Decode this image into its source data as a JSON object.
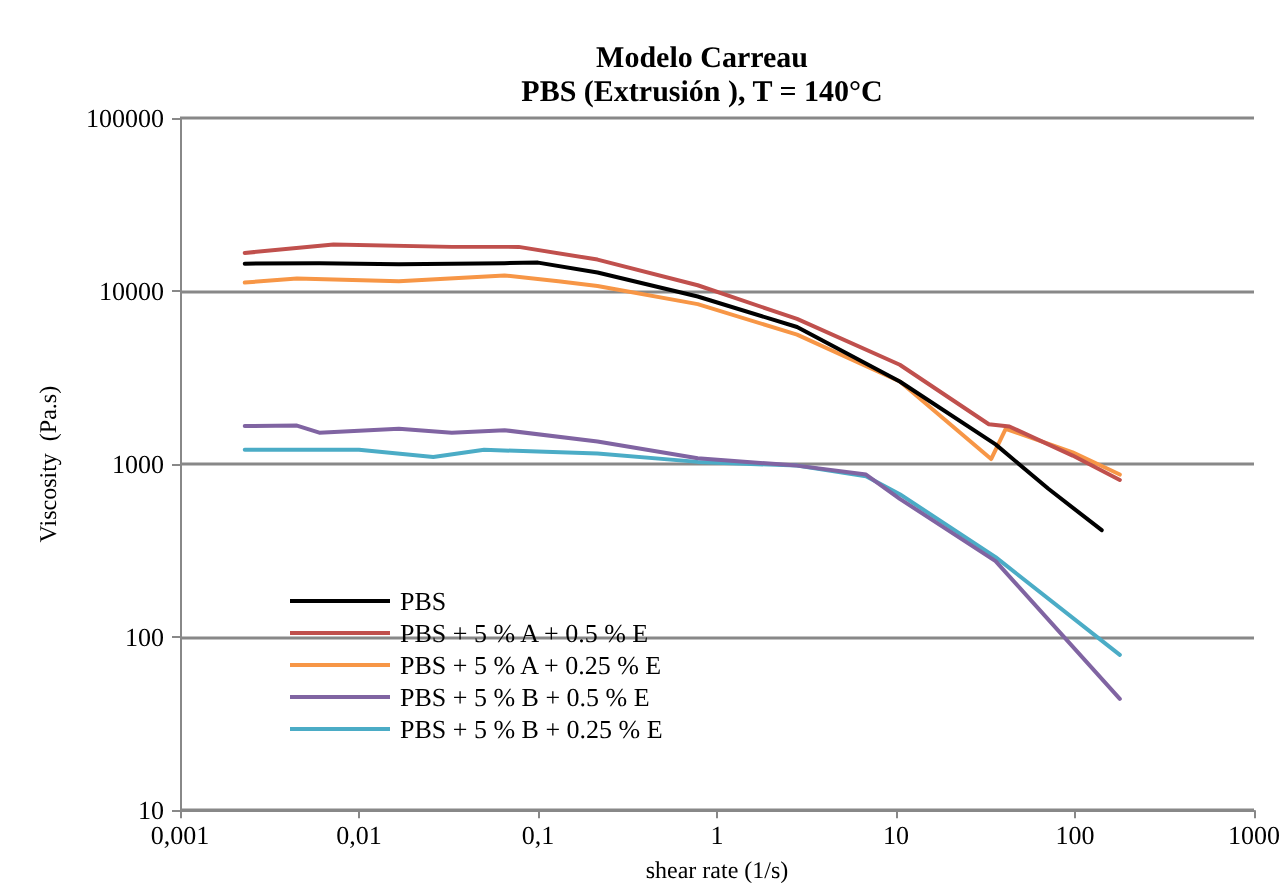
{
  "chart_data": {
    "type": "line",
    "title": "Modelo Carreau\nPBS (Extrusión ), T = 140°C",
    "xlabel": "shear rate (1/s)",
    "ylabel": "Viscosity  (Pa.s)",
    "log": "xy",
    "grid": "y",
    "legend": "bottom left",
    "marker": "none",
    "line_style": "solid",
    "xlim": [
      0.001,
      1000
    ],
    "ylim": [
      10,
      100000
    ],
    "xticks": [
      {
        "value": 0.001,
        "label": "0,001"
      },
      {
        "value": 0.01,
        "label": "0,01"
      },
      {
        "value": 0.1,
        "label": "0,1"
      },
      {
        "value": 1,
        "label": "1"
      },
      {
        "value": 10,
        "label": "10"
      },
      {
        "value": 100,
        "label": "100"
      },
      {
        "value": 1000,
        "label": "1000"
      }
    ],
    "yticks": [
      10,
      100,
      1000,
      10000,
      100000
    ],
    "series": [
      {
        "name": "PBS",
        "color": "#000000",
        "x": [
          0.0023,
          0.006,
          0.0167,
          0.065,
          0.1,
          0.215,
          0.78,
          2.8,
          10.5,
          36,
          71,
          141
        ],
        "values": [
          14400,
          14500,
          14300,
          14500,
          14600,
          12800,
          9300,
          6200,
          3000,
          1300,
          720,
          415
        ]
      },
      {
        "name": "PBS + 5 % A + 0.5 % E",
        "color": "#c0504d",
        "x": [
          0.0023,
          0.0072,
          0.033,
          0.078,
          0.215,
          0.78,
          2.8,
          10.5,
          33,
          43,
          97,
          178
        ],
        "values": [
          16600,
          18600,
          18000,
          18000,
          15200,
          10800,
          6900,
          3750,
          1700,
          1650,
          1120,
          810
        ]
      },
      {
        "name": "PBS + 5 % A + 0.25 % E",
        "color": "#f79646",
        "x": [
          0.0023,
          0.0045,
          0.0167,
          0.065,
          0.13,
          0.215,
          0.78,
          2.8,
          10.5,
          34,
          41,
          97,
          178
        ],
        "values": [
          11200,
          11800,
          11400,
          12300,
          11400,
          10700,
          8400,
          5600,
          3000,
          1070,
          1600,
          1170,
          870
        ]
      },
      {
        "name": "PBS + 5 % B + 0.5 % E",
        "color": "#8064a2",
        "x": [
          0.0023,
          0.0045,
          0.006,
          0.0167,
          0.033,
          0.065,
          0.215,
          0.78,
          2.8,
          6.8,
          10.5,
          36,
          178
        ],
        "values": [
          1660,
          1670,
          1520,
          1600,
          1520,
          1570,
          1350,
          1080,
          980,
          870,
          630,
          275,
          44
        ]
      },
      {
        "name": "PBS + 5 % B + 0.25 % E",
        "color": "#4bacc6",
        "x": [
          0.0023,
          0.01,
          0.026,
          0.05,
          0.215,
          0.78,
          2.8,
          6.8,
          10.5,
          36,
          178
        ],
        "values": [
          1210,
          1210,
          1100,
          1210,
          1150,
          1030,
          980,
          850,
          670,
          290,
          79
        ]
      }
    ]
  }
}
